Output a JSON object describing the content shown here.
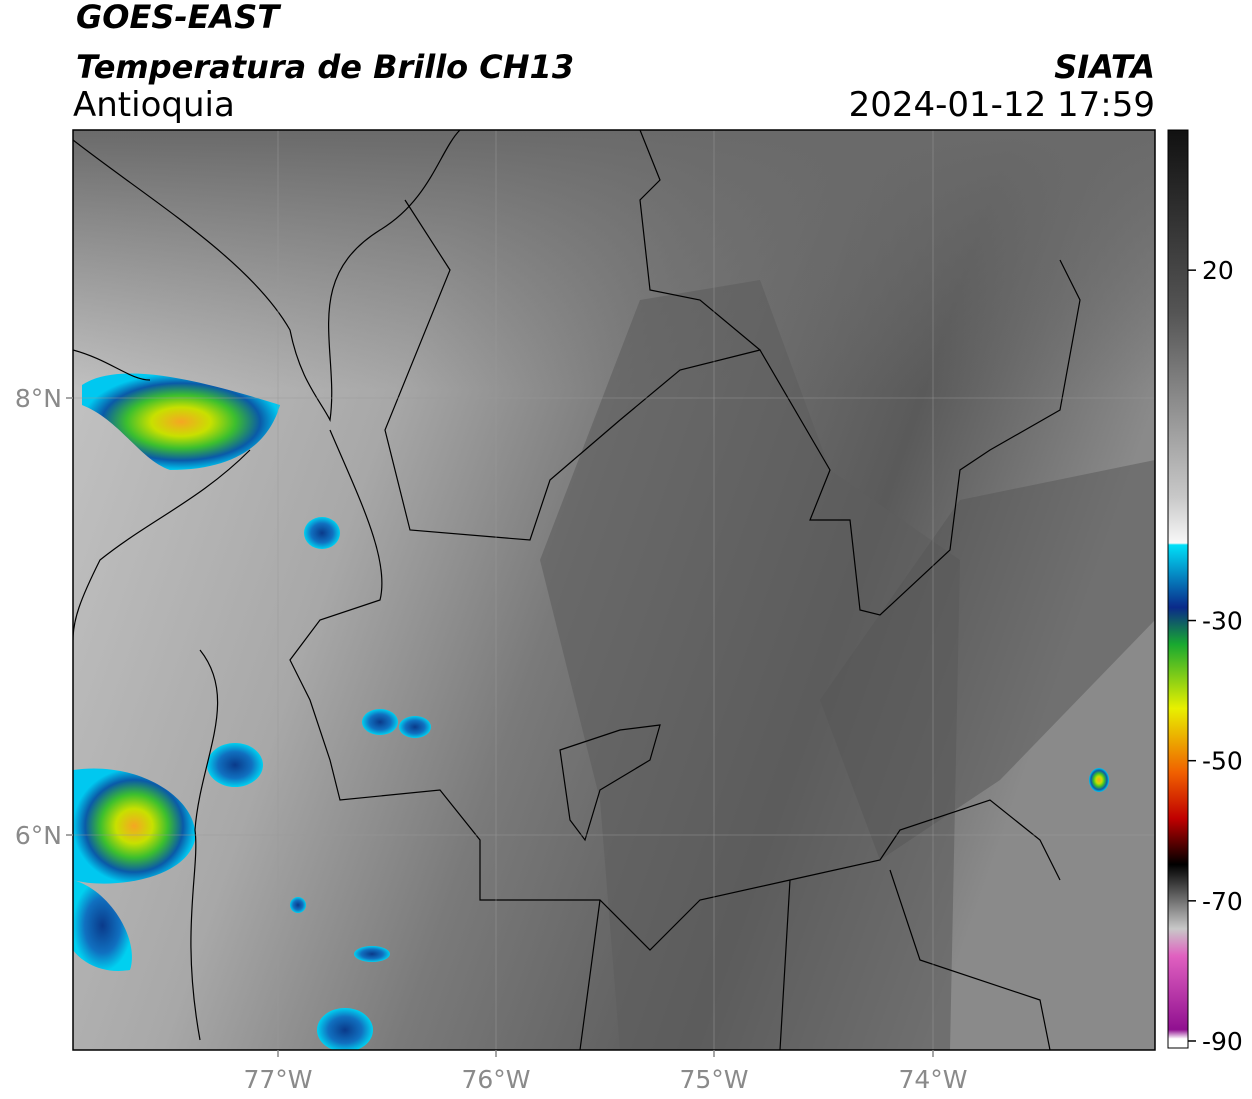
{
  "header": {
    "title": "GOES-EAST",
    "subtitle": "Temperatura de Brillo CH13",
    "region": "Antioquia",
    "source": "SIATA",
    "datetime": "2024-01-12 17:59"
  },
  "map": {
    "lat_labels": [
      "8°N",
      "6°N"
    ],
    "lon_labels": [
      "77°W",
      "76°W",
      "75°W",
      "74°W"
    ]
  },
  "colorbar": {
    "range": [
      -91,
      40
    ],
    "ticks": [
      20,
      -30,
      -50,
      -70,
      -90
    ]
  }
}
